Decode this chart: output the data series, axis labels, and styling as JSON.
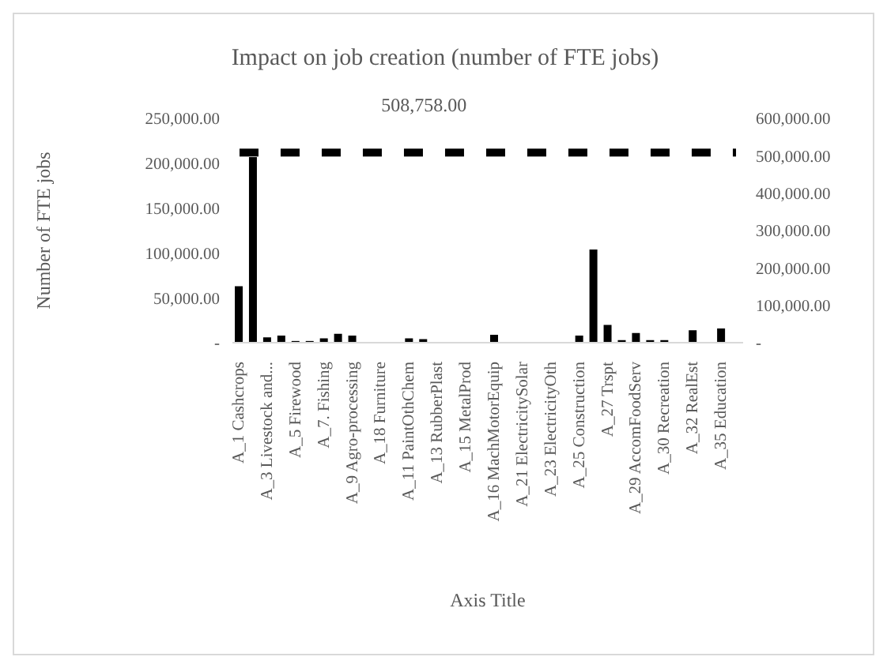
{
  "chart_data": {
    "type": "bar",
    "title": "Impact on job creation (number of FTE jobs)",
    "xlabel": "Axis Title",
    "ylabel": "Number of FTE jobs",
    "categories": [
      "A_1 Cashcrops",
      null,
      "A_3 Livestock and...",
      null,
      "A_5 Firewood",
      null,
      "A_7. Fishing",
      null,
      "A_9 Agro-processing",
      null,
      "A_18 Furniture",
      null,
      "A_11 PaintOthChem",
      null,
      "A_13 RubberPlast",
      null,
      "A_15 MetalProd",
      null,
      "A_16 MachMotorEquip",
      null,
      "A_21 ElectricitySolar",
      null,
      "A_23 ElectricityOth",
      null,
      "A_25 Construction",
      null,
      "A_27 Trspt",
      null,
      "A_29 AccomFoodServ",
      null,
      "A_30 Recreation",
      null,
      "A_32 RealEst",
      null,
      "A_35 Education",
      null
    ],
    "series": [
      {
        "color": "#000000",
        "values": [
          62000,
          206000,
          5000,
          7000,
          1000,
          1000,
          4000,
          9000,
          7000,
          0,
          0,
          0,
          4000,
          3000,
          0,
          0,
          0,
          0,
          8000,
          0,
          0,
          0,
          0,
          0,
          7000,
          103000,
          19000,
          2000,
          10000,
          2000,
          2000,
          0,
          13000,
          0,
          15000,
          0
        ]
      },
      {
        "type": "line",
        "axis": "y2",
        "color": "#000000",
        "line_style": "dashed",
        "marker": "none",
        "values": [
          508758,
          508758,
          508758,
          508758,
          508758,
          508758,
          508758,
          508758,
          508758,
          508758,
          508758,
          508758,
          508758,
          508758,
          508758,
          508758,
          508758,
          508758,
          508758,
          508758,
          508758,
          508758,
          508758,
          508758,
          508758,
          508758,
          508758,
          508758,
          508758,
          508758,
          508758,
          508758,
          508758,
          508758,
          508758,
          508758
        ],
        "value_labels": [
          null,
          null,
          null,
          null,
          null,
          null,
          null,
          null,
          null,
          null,
          null,
          null,
          null,
          "508,758.00",
          null,
          null,
          null,
          null,
          null,
          null,
          null,
          null,
          null,
          null,
          null,
          null,
          null,
          null,
          null,
          null,
          null,
          null,
          null,
          null,
          null,
          null
        ]
      }
    ],
    "ylim": [
      0,
      250000
    ],
    "yticks": [
      {
        "value": 0,
        "label": "-"
      },
      {
        "value": 50000,
        "label": "50,000.00"
      },
      {
        "value": 100000,
        "label": "100,000.00"
      },
      {
        "value": 150000,
        "label": "150,000.00"
      },
      {
        "value": 200000,
        "label": "200,000.00"
      },
      {
        "value": 250000,
        "label": "250,000.00"
      }
    ],
    "y2lim": [
      0,
      600000
    ],
    "y2ticks": [
      {
        "value": 0,
        "label": "-"
      },
      {
        "value": 100000,
        "label": "100,000.00"
      },
      {
        "value": 200000,
        "label": "200,000.00"
      },
      {
        "value": 300000,
        "label": "300,000.00"
      },
      {
        "value": 400000,
        "label": "400,000.00"
      },
      {
        "value": 500000,
        "label": "500,000.00"
      },
      {
        "value": 600000,
        "label": "600,000.00"
      }
    ],
    "grid": false,
    "legend": false
  }
}
